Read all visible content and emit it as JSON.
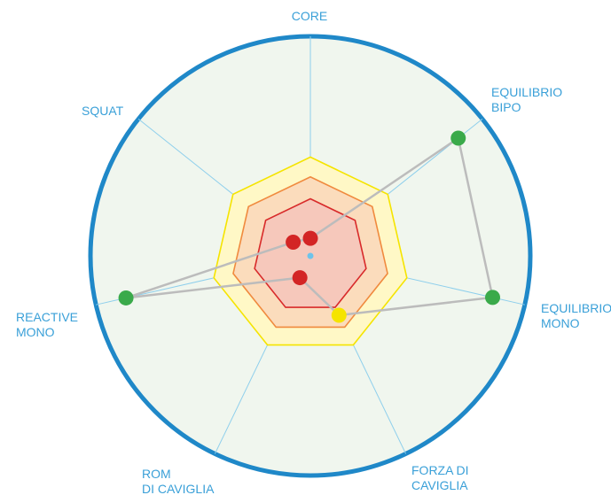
{
  "chart_data": {
    "type": "radar",
    "axes": [
      {
        "label_lines": [
          "CORE"
        ]
      },
      {
        "label_lines": [
          "EQUILIBRIO",
          "BIPO"
        ]
      },
      {
        "label_lines": [
          "EQUILIBRIO",
          "MONO"
        ]
      },
      {
        "label_lines": [
          "FORZA DI",
          "CAVIGLIA"
        ]
      },
      {
        "label_lines": [
          "ROM",
          "DI CAVIGLIA"
        ]
      },
      {
        "label_lines": [
          "REACTIVE",
          "MONO"
        ]
      },
      {
        "label_lines": [
          "SQUAT"
        ]
      }
    ],
    "rmax": 1.0,
    "bands": [
      {
        "level": 0.45,
        "fill": "#fff8c6",
        "stroke": "#f5e400"
      },
      {
        "level": 0.36,
        "fill": "#fbdcbc",
        "stroke": "#f08a3e"
      },
      {
        "level": 0.26,
        "fill": "#f6c8bb",
        "stroke": "#d82a2a"
      }
    ],
    "points": [
      {
        "axis": 0,
        "value": 0.08,
        "color": "#d32525"
      },
      {
        "axis": 1,
        "value": 0.86,
        "color": "#3aaa4a"
      },
      {
        "axis": 2,
        "value": 0.85,
        "color": "#3aaa4a"
      },
      {
        "axis": 3,
        "value": 0.3,
        "color": "#f5e400"
      },
      {
        "axis": 4,
        "value": 0.11,
        "color": "#d32525"
      },
      {
        "axis": 5,
        "value": 0.86,
        "color": "#3aaa4a"
      },
      {
        "axis": 6,
        "value": 0.1,
        "color": "#d32525"
      }
    ],
    "colors": {
      "outer_ring": "#1f88c8",
      "background": "#f0f6ee",
      "spokes": "#8ecfec",
      "polyline": "#bcbcbc",
      "center_dot": "#6ec3ea",
      "labels": "#3aa0d8"
    }
  }
}
